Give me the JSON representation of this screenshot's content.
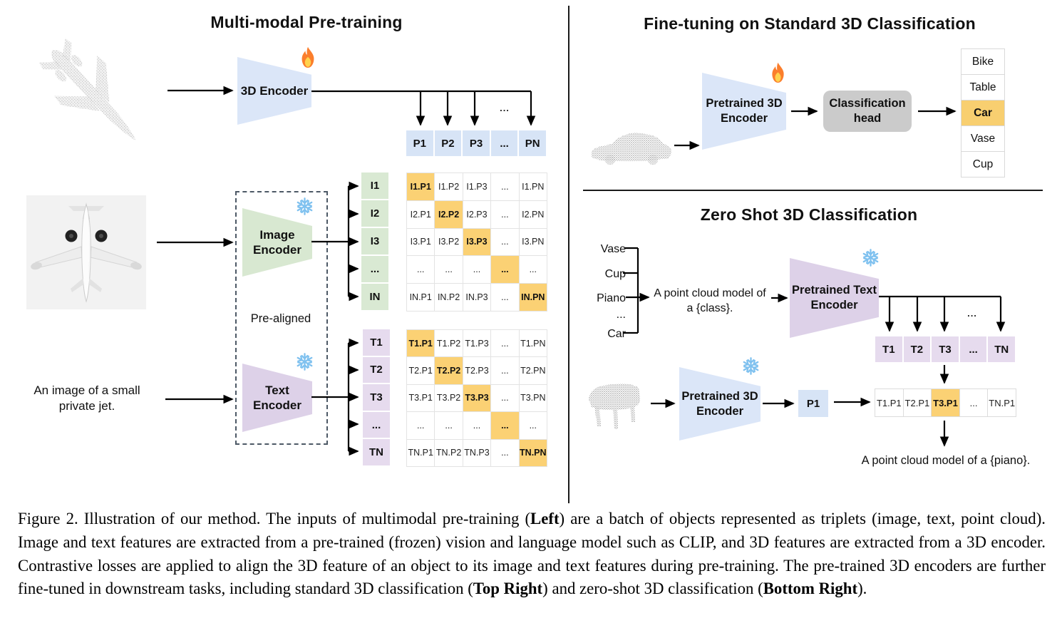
{
  "left": {
    "title": "Multi-modal Pre-training",
    "encoder_3d_label": "3D Encoder",
    "image_encoder_label": "Image\nEncoder",
    "text_encoder_label": "Text\nEncoder",
    "pre_aligned_label": "Pre-aligned",
    "input_text": "An image of a small\nprivate jet.",
    "dots": "...",
    "p_header": [
      "P1",
      "P2",
      "P3",
      "...",
      "PN"
    ],
    "i_labels": [
      "I1",
      "I2",
      "I3",
      "...",
      "IN"
    ],
    "t_labels": [
      "T1",
      "T2",
      "T3",
      "...",
      "TN"
    ],
    "i_matrix": [
      [
        "I1.P1",
        "I1.P2",
        "I1.P3",
        "...",
        "I1.PN"
      ],
      [
        "I2.P1",
        "I2.P2",
        "I2.P3",
        "...",
        "I2.PN"
      ],
      [
        "I3.P1",
        "I3.P2",
        "I3.P3",
        "...",
        "I3.PN"
      ],
      [
        "...",
        "...",
        "...",
        "...",
        "..."
      ],
      [
        "IN.P1",
        "IN.P2",
        "IN.P3",
        "...",
        "IN.PN"
      ]
    ],
    "t_matrix": [
      [
        "T1.P1",
        "T1.P2",
        "T1.P3",
        "...",
        "T1.PN"
      ],
      [
        "T2.P1",
        "T2.P2",
        "T2.P3",
        "...",
        "T2.PN"
      ],
      [
        "T3.P1",
        "T3.P2",
        "T3.P3",
        "...",
        "T3.PN"
      ],
      [
        "...",
        "...",
        "...",
        "...",
        "..."
      ],
      [
        "TN.P1",
        "TN.P2",
        "TN.P3",
        "...",
        "TN.PN"
      ]
    ]
  },
  "finetune": {
    "title": "Fine-tuning on Standard 3D Classification",
    "encoder_label": "Pretrained 3D\nEncoder",
    "head_label": "Classification\nhead",
    "classes": [
      "Bike",
      "Table",
      "Car",
      "Vase",
      "Cup"
    ],
    "highlight_class": "Car"
  },
  "zeroshot": {
    "title": "Zero Shot 3D Classification",
    "classes": [
      "Vase",
      "Cup",
      "Piano",
      "...",
      "Car"
    ],
    "prompt": "A point cloud model of\na {class}.",
    "text_encoder_label": "Pretrained Text\nEncoder",
    "encoder_3d_label": "Pretrained 3D\nEncoder",
    "dots": "...",
    "t_row": [
      "T1",
      "T2",
      "T3",
      "...",
      "TN"
    ],
    "p1_label": "P1",
    "sim_row": [
      "T1.P1",
      "T2.P1",
      "T3.P1",
      "...",
      "TN.P1"
    ],
    "sim_highlight_index": 2,
    "result_text": "A point cloud model of a {piano}."
  },
  "icons": {
    "trainable_icon": "fire",
    "frozen_icon": "snowflake"
  },
  "colors": {
    "highlight_orange": "#FBD174",
    "cell_blue": "#D7E4F6",
    "cell_green": "#D9E9D3",
    "cell_purple": "#E6DBEE",
    "encoder_blue": "#DBE6F8",
    "encoder_green": "#D8E8D1",
    "encoder_purple": "#DDD1E8",
    "head_gray": "#CBCBCB"
  },
  "caption": {
    "segments": [
      {
        "text": "Figure 2. Illustration of our method. The inputs of multimodal pre-training (",
        "bold": false
      },
      {
        "text": "Left",
        "bold": true
      },
      {
        "text": ") are a batch of objects represented as triplets (image, text, point cloud). Image and text features are extracted from a pre-trained (frozen) vision and language model such as CLIP, and 3D features are extracted from a 3D encoder. Contrastive losses are applied to align the 3D feature of an object to its image and text features during pre-training. The pre-trained 3D encoders are further fine-tuned in downstream tasks, including standard 3D classification (",
        "bold": false
      },
      {
        "text": "Top Right",
        "bold": true
      },
      {
        "text": ") and zero-shot 3D classification (",
        "bold": false
      },
      {
        "text": "Bottom Right",
        "bold": true
      },
      {
        "text": ").",
        "bold": false
      }
    ]
  }
}
